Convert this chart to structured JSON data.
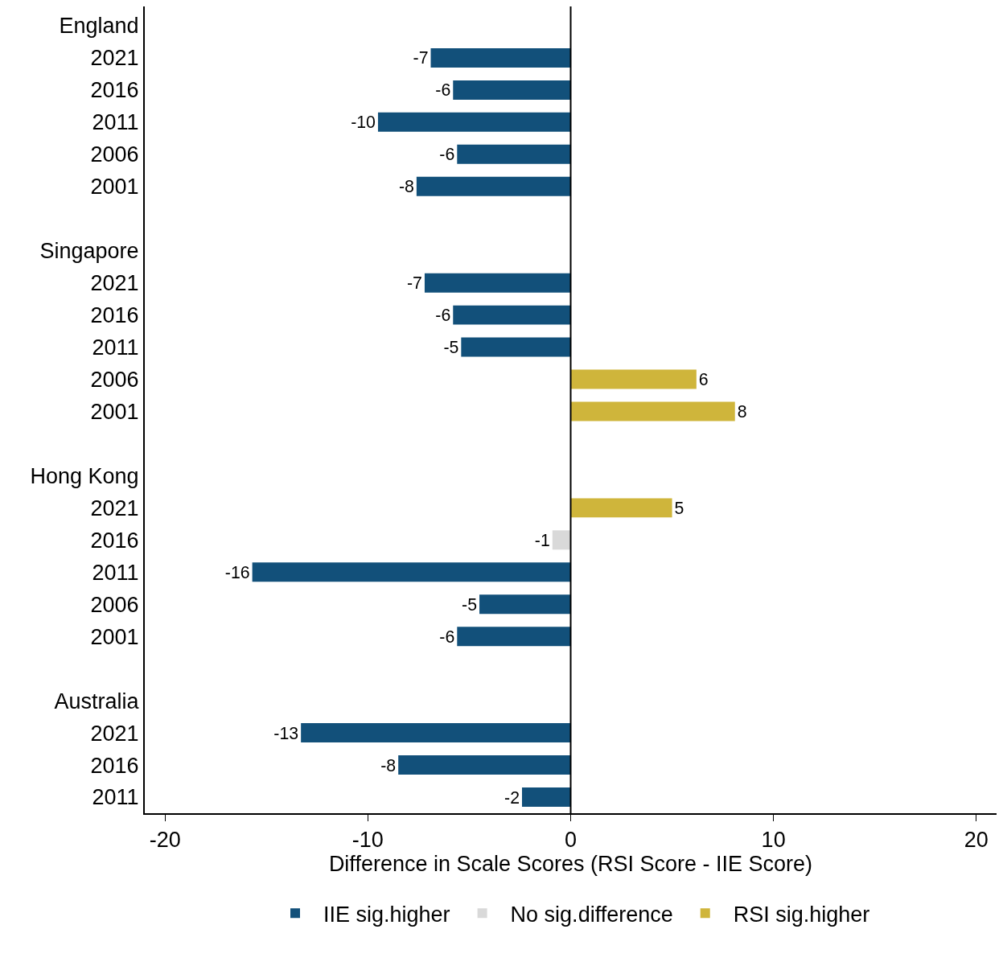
{
  "chart_data": {
    "type": "bar",
    "orientation": "horizontal",
    "xlabel": "Difference in Scale Scores (RSI Score - IIE Score)",
    "categories": [
      "England",
      "2021",
      "2016",
      "2011",
      "2006",
      "2001",
      null,
      "Singapore",
      "2021",
      "2016",
      "2011",
      "2006",
      "2001",
      null,
      "Hong Kong",
      "2021",
      "2016",
      "2011",
      "2006",
      "2001",
      null,
      "Australia",
      "2021",
      "2016",
      "2011"
    ],
    "series": [
      {
        "name": "IIE sig.higher",
        "color": "#12507a",
        "values": [
          null,
          -6.9,
          -5.8,
          -9.5,
          -5.6,
          -7.6,
          null,
          null,
          -7.2,
          -5.8,
          -5.4,
          null,
          null,
          null,
          null,
          null,
          null,
          -15.7,
          -4.5,
          -5.6,
          null,
          null,
          -13.3,
          -8.5,
          -2.4
        ],
        "value_labels": [
          null,
          "-7",
          "-6",
          "-10",
          "-6",
          "-8",
          null,
          null,
          "-7",
          "-6",
          "-5",
          null,
          null,
          null,
          null,
          null,
          null,
          "-16",
          "-5",
          "-6",
          null,
          null,
          "-13",
          "-8",
          "-2"
        ]
      },
      {
        "name": "No sig.difference",
        "color": "#d9d9d9",
        "values": [
          null,
          null,
          null,
          null,
          null,
          null,
          null,
          null,
          null,
          null,
          null,
          null,
          null,
          null,
          null,
          null,
          -0.9,
          null,
          null,
          null,
          null,
          null,
          null,
          null,
          null
        ],
        "value_labels": [
          null,
          null,
          null,
          null,
          null,
          null,
          null,
          null,
          null,
          null,
          null,
          null,
          null,
          null,
          null,
          null,
          "-1",
          null,
          null,
          null,
          null,
          null,
          null,
          null,
          null
        ]
      },
      {
        "name": "RSI sig.higher",
        "color": "#cfb53b",
        "values": [
          null,
          null,
          null,
          null,
          null,
          null,
          null,
          null,
          null,
          null,
          null,
          6.2,
          8.1,
          null,
          null,
          5.0,
          null,
          null,
          null,
          null,
          null,
          null,
          null,
          null,
          null
        ],
        "value_labels": [
          null,
          null,
          null,
          null,
          null,
          null,
          null,
          null,
          null,
          null,
          null,
          "6",
          "8",
          null,
          null,
          "5",
          null,
          null,
          null,
          null,
          null,
          null,
          null,
          null,
          null
        ]
      }
    ],
    "xlim": [
      -21,
      21
    ],
    "xticks": [
      -20,
      -10,
      0,
      10,
      20
    ],
    "ref_lines": [
      {
        "axis": "x",
        "value": 0,
        "color": "#000000"
      }
    ],
    "grid": false,
    "legend": "bottom"
  }
}
